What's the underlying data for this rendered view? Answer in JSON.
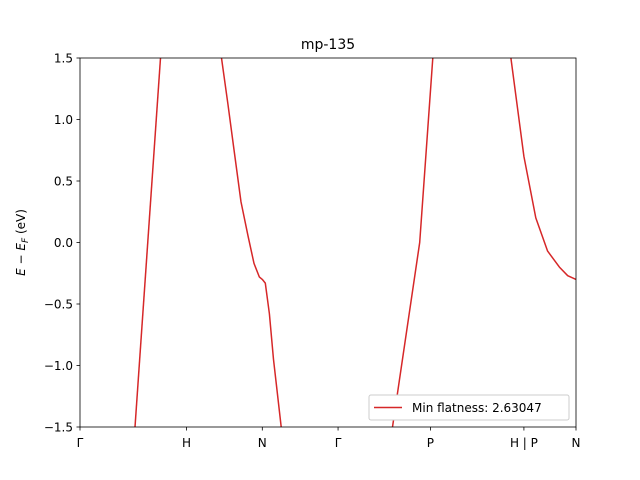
{
  "chart_data": {
    "type": "line",
    "title": "mp-135",
    "xlabel": "",
    "ylabel": "E − E_F (eV)",
    "ylim": [
      -1.5,
      1.5
    ],
    "xlim": [
      0,
      4.19
    ],
    "yticks": [
      -1.5,
      -1.0,
      -0.5,
      0.0,
      0.5,
      1.0,
      1.5
    ],
    "ytick_labels": [
      "−1.5",
      "−1.0",
      "−0.5",
      "0.0",
      "0.5",
      "1.0",
      "1.5"
    ],
    "xticks": [
      {
        "pos": 0.0,
        "label": "Γ"
      },
      {
        "pos": 0.9,
        "label": "H"
      },
      {
        "pos": 1.54,
        "label": "N"
      },
      {
        "pos": 2.18,
        "label": "Γ"
      },
      {
        "pos": 2.96,
        "label": "P"
      },
      {
        "pos": 3.75,
        "label": "H | P"
      },
      {
        "pos": 4.19,
        "label": "N"
      }
    ],
    "grid": false,
    "legend_position": "lower-right",
    "series": [
      {
        "name": "Min flatness: 2.63047",
        "color": "#d62728",
        "segments": [
          [
            [
              0.465,
              -1.5
            ],
            [
              0.68,
              1.5
            ]
          ],
          [
            [
              1.195,
              1.5
            ],
            [
              1.25,
              1.12
            ],
            [
              1.3,
              0.76
            ],
            [
              1.36,
              0.33
            ],
            [
              1.42,
              0.05
            ],
            [
              1.47,
              -0.17
            ],
            [
              1.515,
              -0.28
            ],
            [
              1.54,
              -0.3
            ],
            [
              1.565,
              -0.33
            ],
            [
              1.6,
              -0.58
            ],
            [
              1.635,
              -0.95
            ],
            [
              1.7,
              -1.5
            ]
          ],
          [
            [
              2.64,
              -1.5
            ],
            [
              2.87,
              0.0
            ],
            [
              2.98,
              1.5
            ]
          ],
          [
            [
              3.64,
              1.5
            ],
            [
              3.75,
              0.7
            ],
            [
              3.85,
              0.2
            ],
            [
              3.95,
              -0.07
            ],
            [
              4.05,
              -0.2
            ],
            [
              4.12,
              -0.27
            ],
            [
              4.19,
              -0.3
            ]
          ]
        ]
      }
    ]
  }
}
